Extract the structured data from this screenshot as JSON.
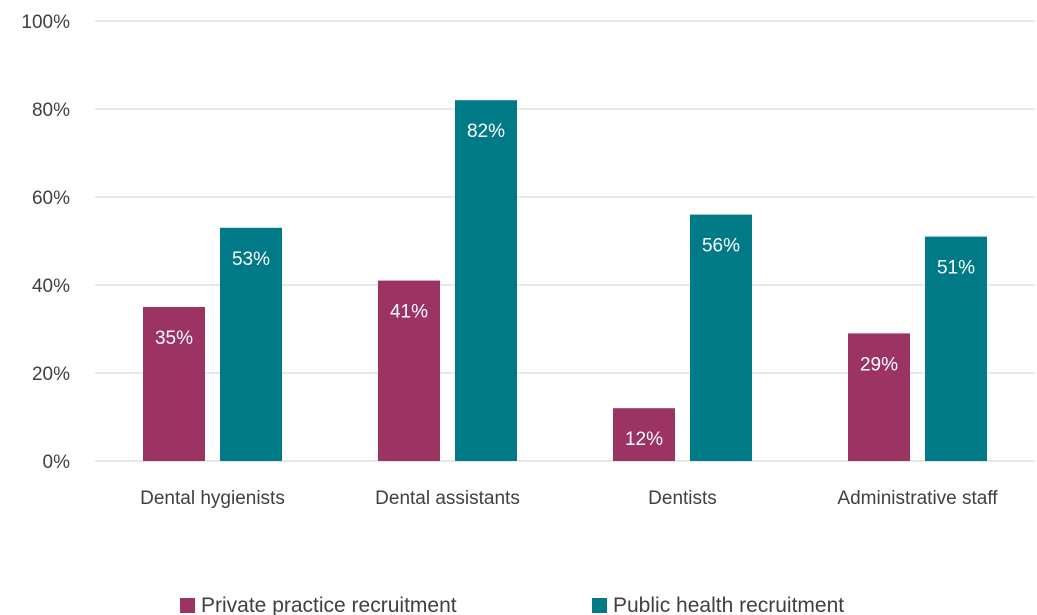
{
  "chart_data": {
    "type": "bar",
    "categories": [
      "Dental hygienists",
      "Dental assistants",
      "Dentists",
      "Administrative staff"
    ],
    "series": [
      {
        "name": "Private practice recruitment",
        "values": [
          35,
          41,
          12,
          29
        ],
        "labels": [
          "35%",
          "41%",
          "12%",
          "29%"
        ],
        "color": "#9b3363"
      },
      {
        "name": "Public health recruitment",
        "values": [
          53,
          82,
          56,
          51
        ],
        "labels": [
          "53%",
          "82%",
          "56%",
          "51%"
        ],
        "color": "#007a87"
      }
    ],
    "yticks": [
      0,
      20,
      40,
      60,
      80,
      100
    ],
    "ytick_labels": [
      "0%",
      "20%",
      "40%",
      "60%",
      "80%",
      "100%"
    ],
    "ylim": [
      0,
      100
    ],
    "grid": true,
    "legend_position": "bottom"
  }
}
